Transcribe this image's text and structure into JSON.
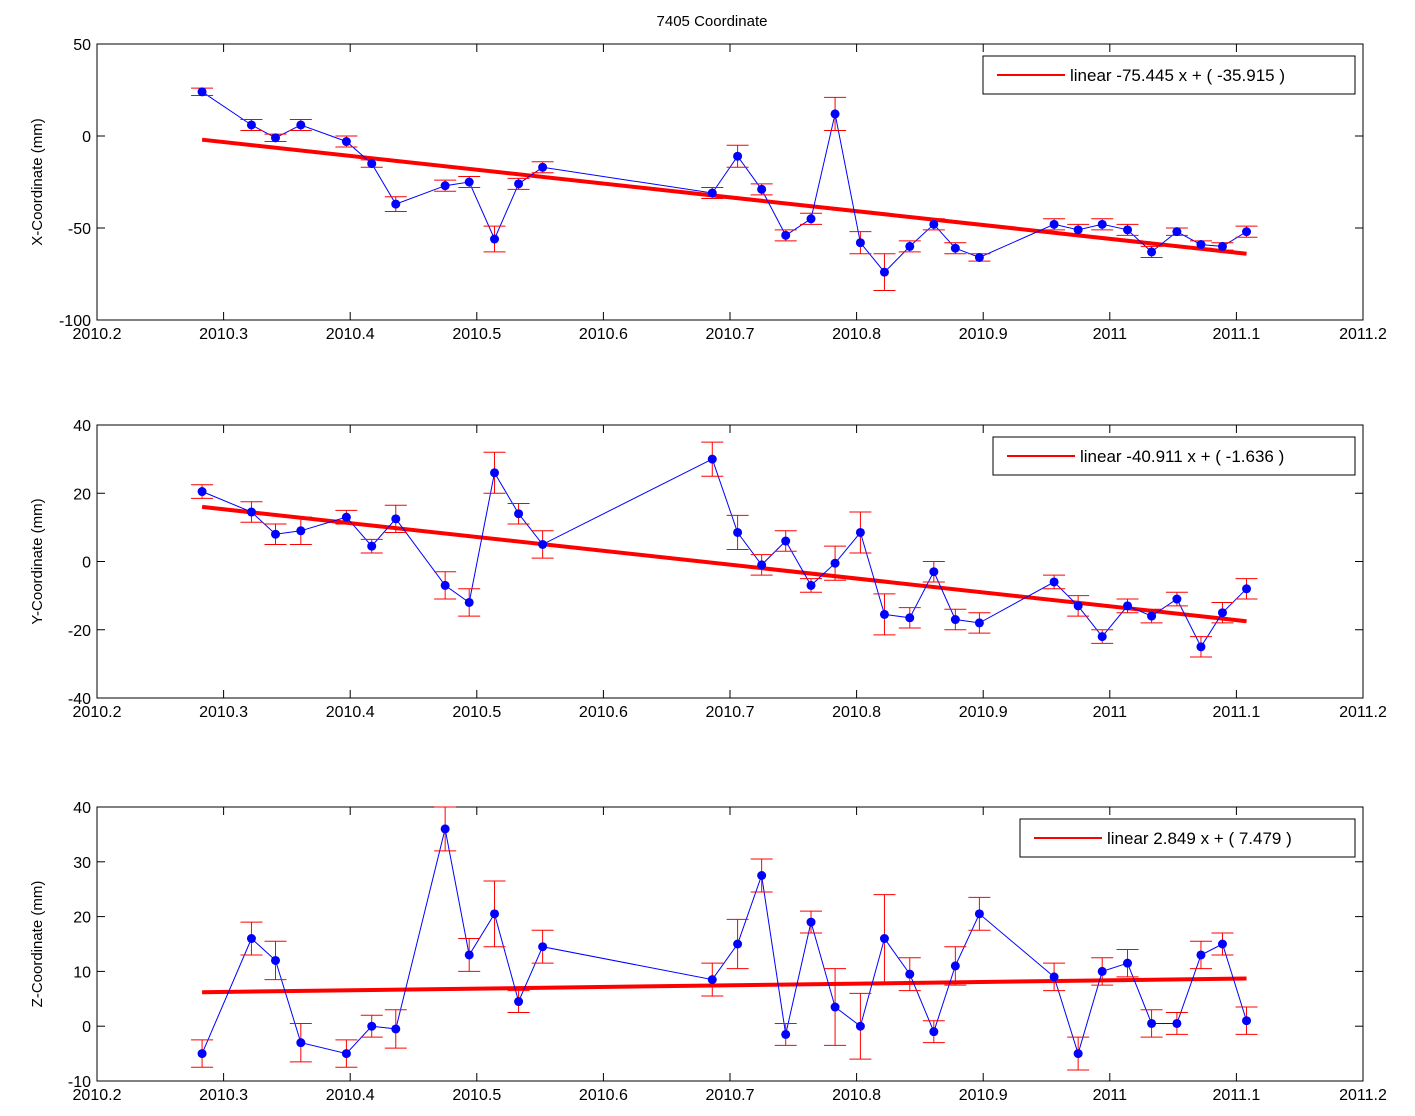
{
  "figure": {
    "title": "7405 Coordinate"
  },
  "chart_data": [
    {
      "type": "scatter",
      "ylabel": "X-Coordinate (mm)",
      "xlim": [
        2010.2,
        2011.2
      ],
      "ylim": [
        -100,
        50
      ],
      "xticks": [
        "2010.2",
        "2010.3",
        "2010.4",
        "2010.5",
        "2010.6",
        "2010.7",
        "2010.8",
        "2010.9",
        "2011",
        "2011.1",
        "2011.2"
      ],
      "yticks": [
        "50",
        "0",
        "-50",
        "-100"
      ],
      "legend": {
        "label": "linear -75.445 x + ( -35.915 )",
        "position": "top-right"
      },
      "colors": {
        "data": "#0000ff",
        "error": "#ff0000",
        "fit": "#ff0000"
      },
      "fit": {
        "x": [
          2010.283,
          2011.108
        ],
        "y": [
          -2,
          -64
        ]
      },
      "series": [
        {
          "x": [
            2010.283,
            2010.322,
            2010.341,
            2010.361,
            2010.397,
            2010.417,
            2010.436,
            2010.475,
            2010.494,
            2010.514,
            2010.533,
            2010.552,
            2010.686,
            2010.706,
            2010.725,
            2010.744,
            2010.764,
            2010.783,
            2010.803,
            2010.822,
            2010.842,
            2010.861,
            2010.878,
            2010.897,
            2010.956,
            2010.975,
            2010.994,
            2011.014,
            2011.033,
            2011.053,
            2011.072,
            2011.089,
            2011.108
          ],
          "y": [
            24,
            6,
            -1,
            6,
            -3,
            -15,
            -37,
            -27,
            -25,
            -56,
            -26,
            -17,
            -31,
            -11,
            -29,
            -54,
            -45,
            12,
            -58,
            -74,
            -60,
            -48,
            -61,
            -66,
            -48,
            -51,
            -48,
            -51,
            -63,
            -52,
            -59,
            -60,
            -52
          ],
          "err": [
            2,
            3,
            2,
            3,
            3,
            2,
            4,
            3,
            3,
            7,
            3,
            3,
            3,
            6,
            3,
            3,
            3,
            9,
            6,
            10,
            3,
            3,
            3,
            2,
            3,
            3,
            3,
            3,
            3,
            2,
            2,
            2,
            3
          ]
        }
      ]
    },
    {
      "type": "scatter",
      "ylabel": "Y-Coordinate (mm)",
      "xlim": [
        2010.2,
        2011.2
      ],
      "ylim": [
        -40,
        40
      ],
      "xticks": [
        "2010.2",
        "2010.3",
        "2010.4",
        "2010.5",
        "2010.6",
        "2010.7",
        "2010.8",
        "2010.9",
        "2011",
        "2011.1",
        "2011.2"
      ],
      "yticks": [
        "40",
        "20",
        "0",
        "-20",
        "-40"
      ],
      "legend": {
        "label": "linear -40.911 x + ( -1.636 )",
        "position": "top-right"
      },
      "colors": {
        "data": "#0000ff",
        "error": "#ff0000",
        "fit": "#ff0000"
      },
      "fit": {
        "x": [
          2010.283,
          2011.108
        ],
        "y": [
          16,
          -17.5
        ]
      },
      "series": [
        {
          "x": [
            2010.283,
            2010.322,
            2010.341,
            2010.361,
            2010.397,
            2010.417,
            2010.436,
            2010.475,
            2010.494,
            2010.514,
            2010.533,
            2010.552,
            2010.686,
            2010.706,
            2010.725,
            2010.744,
            2010.764,
            2010.783,
            2010.803,
            2010.822,
            2010.842,
            2010.861,
            2010.878,
            2010.897,
            2010.956,
            2010.975,
            2010.994,
            2011.014,
            2011.033,
            2011.053,
            2011.072,
            2011.089,
            2011.108
          ],
          "y": [
            20.5,
            14.5,
            8,
            9,
            13,
            4.5,
            12.5,
            -7,
            -12,
            26,
            14,
            5,
            30,
            8.5,
            -1,
            6,
            -7,
            -0.5,
            8.5,
            -15.5,
            -16.5,
            -3,
            -17,
            -18,
            -6,
            -13,
            -22,
            -13,
            -16,
            -11,
            -25,
            -15,
            -8
          ],
          "err": [
            2,
            3,
            3,
            4,
            2,
            2,
            4,
            4,
            4,
            6,
            3,
            4,
            5,
            5,
            3,
            3,
            2,
            5,
            6,
            6,
            3,
            3,
            3,
            3,
            2,
            3,
            2,
            2,
            2,
            2,
            3,
            3,
            3
          ]
        }
      ]
    },
    {
      "type": "scatter",
      "ylabel": "Z-Coordinate (mm)",
      "xlim": [
        2010.2,
        2011.2
      ],
      "ylim": [
        -10,
        40
      ],
      "xticks": [
        "2010.2",
        "2010.3",
        "2010.4",
        "2010.5",
        "2010.6",
        "2010.7",
        "2010.8",
        "2010.9",
        "2011",
        "2011.1",
        "2011.2"
      ],
      "yticks": [
        "40",
        "30",
        "20",
        "10",
        "0",
        "-10"
      ],
      "legend": {
        "label": "linear 2.849 x + ( 7.479 )",
        "position": "top-right"
      },
      "colors": {
        "data": "#0000ff",
        "error": "#ff0000",
        "fit": "#ff0000"
      },
      "fit": {
        "x": [
          2010.283,
          2011.108
        ],
        "y": [
          6.2,
          8.7
        ]
      },
      "series": [
        {
          "x": [
            2010.283,
            2010.322,
            2010.341,
            2010.361,
            2010.397,
            2010.417,
            2010.436,
            2010.475,
            2010.494,
            2010.514,
            2010.533,
            2010.552,
            2010.686,
            2010.706,
            2010.725,
            2010.744,
            2010.764,
            2010.783,
            2010.803,
            2010.822,
            2010.842,
            2010.861,
            2010.878,
            2010.897,
            2010.956,
            2010.975,
            2010.994,
            2011.014,
            2011.033,
            2011.053,
            2011.072,
            2011.089,
            2011.108
          ],
          "y": [
            -5,
            16,
            12,
            -3,
            -5,
            0,
            -0.5,
            36,
            13,
            20.5,
            4.5,
            14.5,
            8.5,
            15,
            27.5,
            -1.5,
            19,
            3.5,
            0,
            16,
            9.5,
            -1,
            11,
            20.5,
            9,
            -5,
            10,
            11.5,
            0.5,
            0.5,
            13,
            15,
            1
          ],
          "err": [
            2.5,
            3,
            3.5,
            3.5,
            2.5,
            2,
            3.5,
            4,
            3,
            6,
            2,
            3,
            3,
            4.5,
            3,
            2,
            2,
            7,
            6,
            8,
            3,
            2,
            3.5,
            3,
            2.5,
            3,
            2.5,
            2.5,
            2.5,
            2,
            2.5,
            2,
            2.5
          ]
        }
      ]
    }
  ]
}
